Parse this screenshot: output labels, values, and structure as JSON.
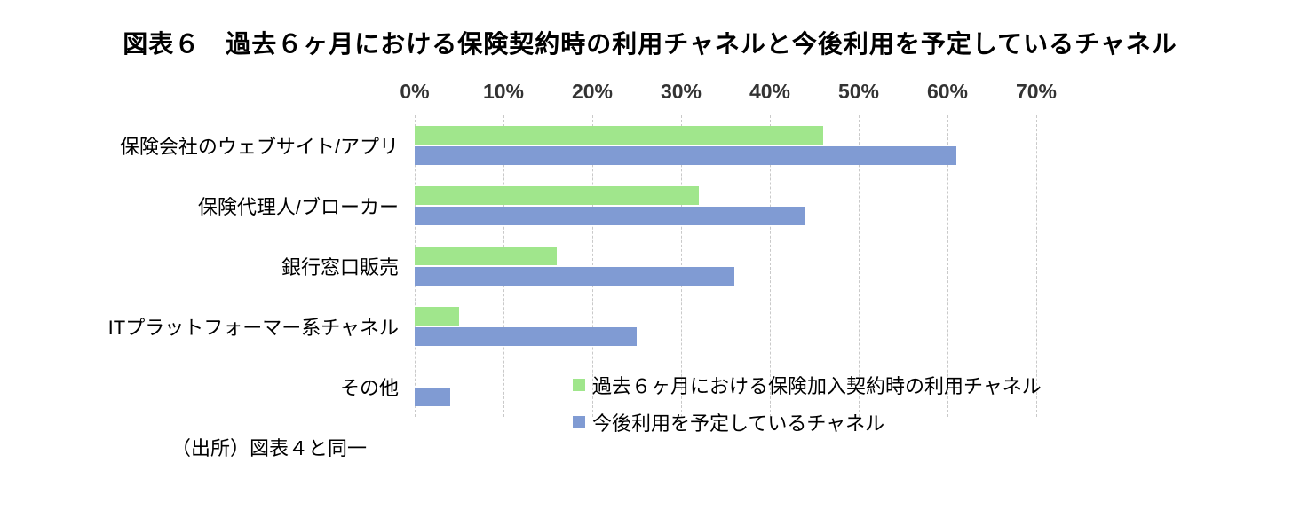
{
  "chart_data": {
    "type": "bar",
    "orientation": "horizontal",
    "title": "図表６　過去６ヶ月における保険契約時の利用チャネルと今後利用を予定しているチャネル",
    "categories": [
      "保険会社のウェブサイト/アプリ",
      "保険代理人/ブローカー",
      "銀行窓口販売",
      "ITプラットフォーマー系チャネル",
      "その他"
    ],
    "series": [
      {
        "name": "過去６ヶ月における保険加入契約時の利用チャネル",
        "color": "#A0E68C",
        "values": [
          46,
          32,
          16,
          5,
          0
        ]
      },
      {
        "name": "今後利用を予定しているチャネル",
        "color": "#809BD3",
        "values": [
          61,
          44,
          36,
          25,
          4
        ]
      }
    ],
    "x_ticks": [
      "0%",
      "10%",
      "20%",
      "30%",
      "40%",
      "50%",
      "60%",
      "70%"
    ],
    "xlim": [
      0,
      70
    ],
    "grid": "dashed-vertical",
    "legend_position": "inside-bottom",
    "gridline_color": "#C9C9C9"
  },
  "source": "（出所）図表４と同一"
}
